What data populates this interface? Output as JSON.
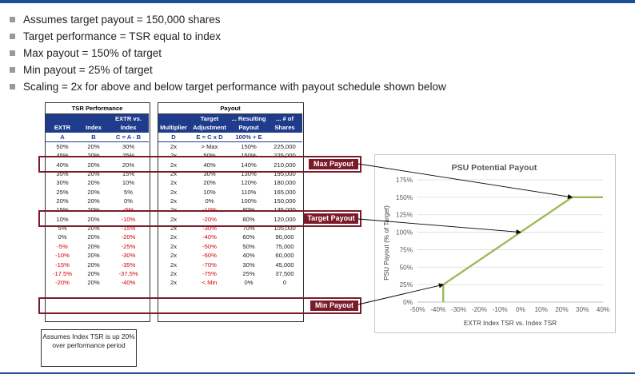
{
  "bullets": [
    "Assumes target payout = 150,000 shares",
    "Target performance = TSR equal to index",
    "Max payout = 150% of target",
    "Min payout = 25% of target",
    "Scaling = 2x for above and below target performance with payout schedule shown below"
  ],
  "tsr_table": {
    "title": "TSR Performance",
    "head1": [
      "",
      "",
      "EXTR vs."
    ],
    "head2": [
      "EXTR",
      "Index",
      "Index"
    ],
    "head3": [
      "A",
      "B",
      "C = A - B"
    ],
    "rows": [
      [
        "50%",
        "20%",
        "30%"
      ],
      [
        "45%",
        "20%",
        "25%"
      ],
      [
        "40%",
        "20%",
        "20%"
      ],
      [
        "35%",
        "20%",
        "15%"
      ],
      [
        "30%",
        "20%",
        "10%"
      ],
      [
        "25%",
        "20%",
        "5%"
      ],
      [
        "20%",
        "20%",
        "0%"
      ],
      [
        "15%",
        "20%",
        "-5%"
      ],
      [
        "10%",
        "20%",
        "-10%"
      ],
      [
        "5%",
        "20%",
        "-15%"
      ],
      [
        "0%",
        "20%",
        "-20%"
      ],
      [
        "-5%",
        "20%",
        "-25%"
      ],
      [
        "-10%",
        "20%",
        "-30%"
      ],
      [
        "-15%",
        "20%",
        "-35%"
      ],
      [
        "-17.5%",
        "20%",
        "-37.5%"
      ],
      [
        "-20%",
        "20%",
        "-40%"
      ]
    ]
  },
  "payout_table": {
    "title": "Payout",
    "head1": [
      "",
      "Target",
      "... Resulting",
      "... # of"
    ],
    "head2": [
      "Multiplier",
      "Adjustment",
      "Payout",
      "Shares"
    ],
    "head3": [
      "D",
      "E = C x D",
      "100% + E",
      ""
    ],
    "rows": [
      [
        "2x",
        "> Max",
        "150%",
        "225,000"
      ],
      [
        "2x",
        "50%",
        "150%",
        "225,000"
      ],
      [
        "2x",
        "40%",
        "140%",
        "210,000"
      ],
      [
        "2x",
        "30%",
        "130%",
        "195,000"
      ],
      [
        "2x",
        "20%",
        "120%",
        "180,000"
      ],
      [
        "2x",
        "10%",
        "110%",
        "165,000"
      ],
      [
        "2x",
        "0%",
        "100%",
        "150,000"
      ],
      [
        "2x",
        "-10%",
        "90%",
        "135,000"
      ],
      [
        "2x",
        "-20%",
        "80%",
        "120,000"
      ],
      [
        "2x",
        "-30%",
        "70%",
        "105,000"
      ],
      [
        "2x",
        "-40%",
        "60%",
        "90,000"
      ],
      [
        "2x",
        "-50%",
        "50%",
        "75,000"
      ],
      [
        "2x",
        "-60%",
        "40%",
        "60,000"
      ],
      [
        "2x",
        "-70%",
        "30%",
        "45,000"
      ],
      [
        "2x",
        "-75%",
        "25%",
        "37,500"
      ],
      [
        "2x",
        "< Min",
        "0%",
        "0"
      ]
    ]
  },
  "labels": {
    "max": "Max Payout",
    "target": "Target Payout",
    "min": "Min Payout"
  },
  "note": "Assumes Index TSR is up 20% over performance period",
  "colors": {
    "header_blue": "#1f3c8c",
    "negative_red": "#d40000",
    "highlight": "#7b1b2a",
    "line_green": "#9bbb59",
    "accent_bar": "#1f4e99"
  },
  "chart_data": {
    "type": "line",
    "title": "PSU Potential Payout",
    "xlabel": "EXTR Index TSR vs. Index TSR",
    "ylabel": "PSU Payout (% of Target)",
    "xlim": [
      -50,
      40
    ],
    "ylim": [
      0,
      175
    ],
    "xticks": [
      "-50%",
      "-40%",
      "-30%",
      "-20%",
      "-10%",
      "0%",
      "10%",
      "20%",
      "30%",
      "40%"
    ],
    "yticks": [
      "0%",
      "25%",
      "50%",
      "75%",
      "100%",
      "125%",
      "150%",
      "175%"
    ],
    "grid": true,
    "series": [
      {
        "x": [
          -37.5,
          -37.5,
          -37.5,
          25,
          40
        ],
        "y": [
          0,
          0,
          25,
          150,
          150
        ]
      }
    ]
  }
}
